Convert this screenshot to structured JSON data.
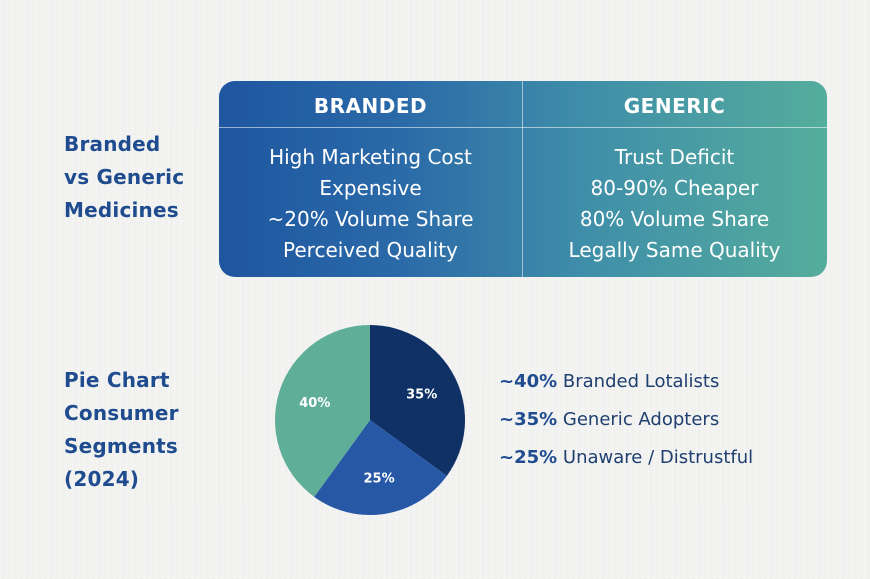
{
  "comparison": {
    "title_lines": [
      "Branded",
      "vs Generic",
      "Medicines"
    ],
    "columns": [
      {
        "header": "BRANDED",
        "rows": [
          "High Marketing Cost",
          "Expensive",
          "~20% Volume Share",
          "Perceived Quality"
        ]
      },
      {
        "header": "GENERIC",
        "rows": [
          "Trust Deficit",
          "80-90% Cheaper",
          "80% Volume Share",
          "Legally Same Quality"
        ]
      }
    ]
  },
  "pie_section": {
    "title_lines": [
      "Pie Chart",
      "Consumer",
      "Segments",
      "(2024)"
    ]
  },
  "legend": [
    {
      "pct": "~40%",
      "label": "Branded Lotalists"
    },
    {
      "pct": "~35%",
      "label": "Generic Adopters"
    },
    {
      "pct": "~25%",
      "label": "Unaware / Distrustful"
    }
  ],
  "colors": {
    "teal": "#5fae98",
    "navy": "#0f3166",
    "blue": "#2758a6",
    "title_blue": "#1f4b8f"
  },
  "chart_data": {
    "type": "pie",
    "title": "Pie Chart Consumer Segments (2024)",
    "slices": [
      {
        "label": "35%",
        "value": 35,
        "color": "#0f3166"
      },
      {
        "label": "25%",
        "value": 25,
        "color": "#2758a6"
      },
      {
        "label": "40%",
        "value": 40,
        "color": "#5fae98"
      }
    ],
    "start_angle_deg": 0,
    "direction": "clockwise",
    "legend_position": "right"
  }
}
